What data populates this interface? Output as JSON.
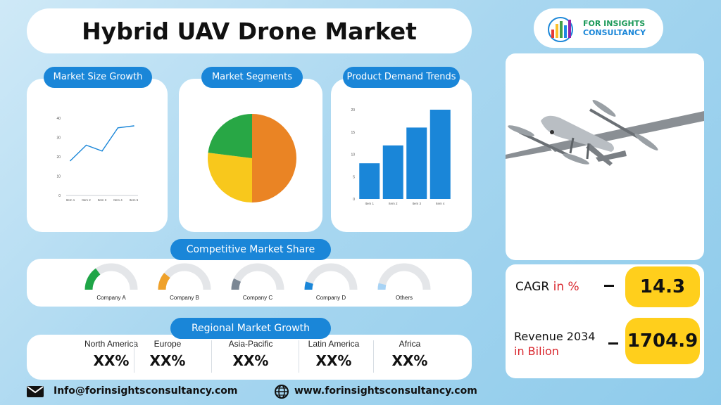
{
  "title": "Hybrid UAV Drone Market",
  "logo": {
    "line1": "FOR INSIGHTS",
    "line2": "CONSULTANCY",
    "bar_colors": [
      "#e53935",
      "#fbc02d",
      "#43a047",
      "#1e88e5",
      "#8e24aa"
    ]
  },
  "sections": {
    "market_size": "Market Size Growth",
    "segments": "Market Segments",
    "demand": "Product Demand Trends",
    "competitive": "Competitive Market Share",
    "regional": "Regional Market Growth"
  },
  "chart_data": [
    {
      "type": "line",
      "categories": [
        "Item 1",
        "Item 2",
        "Item 3",
        "Item 4",
        "Item 5"
      ],
      "series": [
        {
          "values": [
            18,
            26,
            23,
            35,
            36
          ]
        }
      ],
      "ylim": [
        0,
        40
      ],
      "yticks": [
        "0",
        "10",
        "20",
        "30",
        "40"
      ],
      "color": "#1a86d8"
    },
    {
      "type": "pie",
      "values": [
        50,
        27,
        23
      ],
      "colors": [
        "#ea8424",
        "#f8c81c",
        "#28a745"
      ]
    },
    {
      "type": "bar",
      "categories": [
        "Item 1",
        "Item 2",
        "Item 3",
        "Item 4"
      ],
      "values": [
        8,
        12,
        16,
        20
      ],
      "ylim": [
        0,
        20
      ],
      "yticks": [
        "0",
        "5",
        "10",
        "15",
        "20"
      ],
      "color": "#1a86d8"
    }
  ],
  "competitors": [
    {
      "name": "Company A",
      "share": 0.3,
      "color": "#1fa547"
    },
    {
      "name": "Company B",
      "share": 0.22,
      "color": "#efa12a"
    },
    {
      "name": "Company C",
      "share": 0.14,
      "color": "#7b8794"
    },
    {
      "name": "Company D",
      "share": 0.1,
      "color": "#1a86d8"
    },
    {
      "name": "Others",
      "share": 0.08,
      "color": "#a7d3f5"
    }
  ],
  "regions": [
    {
      "name": "North America",
      "value": "XX%"
    },
    {
      "name": "Europe",
      "value": "XX%"
    },
    {
      "name": "Asia-Pacific",
      "value": "XX%"
    },
    {
      "name": "Latin America",
      "value": "XX%"
    },
    {
      "name": "Africa",
      "value": "XX%"
    }
  ],
  "stats": {
    "cagr_label": "CAGR",
    "cagr_unit": "in %",
    "cagr_value": "14.3",
    "revenue_label": "Revenue 2034",
    "revenue_unit": "in Bilion",
    "revenue_value": "1704.9"
  },
  "footer": {
    "email": "Info@forinsightsconsultancy.com",
    "website": "www.forinsightsconsultancy.com"
  }
}
